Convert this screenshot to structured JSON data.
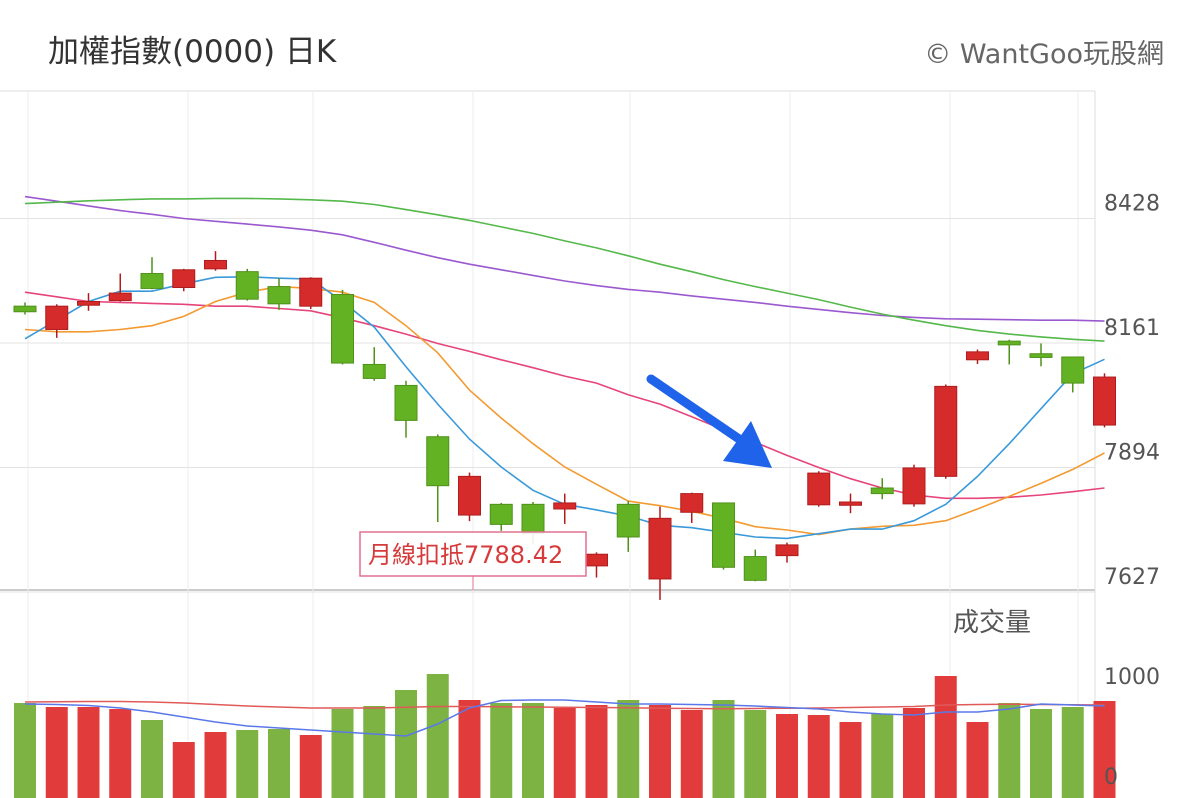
{
  "header": {
    "title": "加權指數(0000) 日K",
    "copyright": "© WantGoo玩股網"
  },
  "volume_panel": {
    "title": "成交量"
  },
  "colors": {
    "up": "#d62b2b",
    "down": "#63b224",
    "ma5": "#3a9ad9",
    "ma10": "#f39a32",
    "ma20": "#e6457a",
    "ma60": "#55b84b",
    "ma120": "#9b59d0",
    "vol_ma5": "#5b78e8",
    "vol_ma20": "#e05a5a",
    "arrow": "#1e63e9"
  },
  "chart_data": [
    {
      "type": "candlestick",
      "title": "加權指數(0000) 日K",
      "y_ticks": [
        8428,
        8161,
        7894,
        7627
      ],
      "ylim": [
        7590,
        8660
      ],
      "grid": true,
      "candles": [
        {
          "o": 8240,
          "c": 8228,
          "h": 8248,
          "l": 8222
        },
        {
          "o": 8190,
          "c": 8240,
          "h": 8244,
          "l": 8172
        },
        {
          "o": 8242,
          "c": 8250,
          "h": 8268,
          "l": 8230
        },
        {
          "o": 8252,
          "c": 8268,
          "h": 8310,
          "l": 8250
        },
        {
          "o": 8310,
          "c": 8278,
          "h": 8345,
          "l": 8276
        },
        {
          "o": 8280,
          "c": 8318,
          "h": 8320,
          "l": 8272
        },
        {
          "o": 8320,
          "c": 8338,
          "h": 8358,
          "l": 8316
        },
        {
          "o": 8314,
          "c": 8255,
          "h": 8320,
          "l": 8252
        },
        {
          "o": 8282,
          "c": 8245,
          "h": 8300,
          "l": 8232
        },
        {
          "o": 8240,
          "c": 8300,
          "h": 8302,
          "l": 8234
        },
        {
          "o": 8265,
          "c": 8118,
          "h": 8275,
          "l": 8115
        },
        {
          "o": 8115,
          "c": 8085,
          "h": 8152,
          "l": 8080
        },
        {
          "o": 8070,
          "c": 7995,
          "h": 8080,
          "l": 7958
        },
        {
          "o": 7960,
          "c": 7855,
          "h": 7965,
          "l": 7777
        },
        {
          "o": 7792,
          "c": 7875,
          "h": 7883,
          "l": 7779
        },
        {
          "o": 7815,
          "c": 7772,
          "h": 7818,
          "l": 7758
        },
        {
          "o": 7815,
          "c": 7752,
          "h": 7820,
          "l": 7730
        },
        {
          "o": 7805,
          "c": 7818,
          "h": 7838,
          "l": 7773
        },
        {
          "o": 7683,
          "c": 7708,
          "h": 7712,
          "l": 7658
        },
        {
          "o": 7815,
          "c": 7745,
          "h": 7822,
          "l": 7713
        },
        {
          "o": 7655,
          "c": 7785,
          "h": 7810,
          "l": 7610
        },
        {
          "o": 7798,
          "c": 7838,
          "h": 7840,
          "l": 7775
        },
        {
          "o": 7818,
          "c": 7680,
          "h": 7818,
          "l": 7675
        },
        {
          "o": 7703,
          "c": 7652,
          "h": 7718,
          "l": 7650
        },
        {
          "o": 7705,
          "c": 7728,
          "h": 7733,
          "l": 7690
        },
        {
          "o": 7814,
          "c": 7882,
          "h": 7886,
          "l": 7810
        },
        {
          "o": 7813,
          "c": 7820,
          "h": 7838,
          "l": 7796
        },
        {
          "o": 7850,
          "c": 7838,
          "h": 7871,
          "l": 7826
        },
        {
          "o": 7816,
          "c": 7893,
          "h": 7900,
          "l": 7810
        },
        {
          "o": 7875,
          "c": 8068,
          "h": 8072,
          "l": 7870
        },
        {
          "o": 8125,
          "c": 8142,
          "h": 8147,
          "l": 8116
        },
        {
          "o": 8165,
          "c": 8157,
          "h": 8168,
          "l": 8115
        },
        {
          "o": 8138,
          "c": 8130,
          "h": 8160,
          "l": 8111
        },
        {
          "o": 8131,
          "c": 8075,
          "h": 8132,
          "l": 8055
        },
        {
          "o": 7985,
          "c": 8088,
          "h": 8096,
          "l": 7980
        }
      ],
      "moving_averages": {
        "ma5": [
          8170,
          8210,
          8250,
          8272,
          8272,
          8288,
          8302,
          8303,
          8300,
          8298,
          8250,
          8195,
          8110,
          8030,
          7955,
          7895,
          7845,
          7815,
          7803,
          7790,
          7770,
          7765,
          7755,
          7745,
          7742,
          7752,
          7762,
          7762,
          7780,
          7815,
          7875,
          7945,
          8020,
          8095,
          8126
        ],
        "ma10": [
          8190,
          8185,
          8185,
          8190,
          8198,
          8218,
          8250,
          8270,
          8282,
          8278,
          8270,
          8248,
          8198,
          8140,
          8060,
          8000,
          7945,
          7895,
          7858,
          7822,
          7812,
          7800,
          7785,
          7767,
          7760,
          7750,
          7762,
          7768,
          7770,
          7780,
          7805,
          7832,
          7860,
          7890,
          7925
        ],
        "ma20": [
          8270,
          8260,
          8250,
          8248,
          8246,
          8244,
          8240,
          8240,
          8235,
          8230,
          8215,
          8198,
          8180,
          8160,
          8143,
          8125,
          8108,
          8090,
          8075,
          8050,
          8030,
          8003,
          7975,
          7948,
          7920,
          7894,
          7870,
          7850,
          7835,
          7828,
          7828,
          7830,
          7835,
          7842,
          7850
        ],
        "ma60": [
          8460,
          8463,
          8466,
          8468,
          8470,
          8470,
          8471,
          8471,
          8470,
          8468,
          8465,
          8458,
          8447,
          8436,
          8424,
          8410,
          8396,
          8380,
          8365,
          8348,
          8330,
          8314,
          8297,
          8282,
          8268,
          8254,
          8238,
          8223,
          8210,
          8198,
          8188,
          8180,
          8174,
          8169,
          8165
        ],
        "ma120": [
          8475,
          8465,
          8455,
          8445,
          8437,
          8428,
          8422,
          8416,
          8410,
          8403,
          8393,
          8377,
          8360,
          8344,
          8330,
          8318,
          8306,
          8294,
          8284,
          8276,
          8270,
          8262,
          8255,
          8248,
          8240,
          8233,
          8226,
          8220,
          8216,
          8213,
          8212,
          8211,
          8210,
          8210,
          8208
        ]
      },
      "annotation": {
        "label": "月線扣抵7788.42"
      }
    },
    {
      "type": "bar",
      "title": "成交量",
      "y_ticks": [
        1000,
        0
      ],
      "ylim": [
        0,
        1000
      ],
      "values": [
        730,
        690,
        690,
        670,
        560,
        340,
        440,
        460,
        470,
        410,
        670,
        700,
        860,
        1020,
        760,
        730,
        730,
        680,
        710,
        760,
        710,
        660,
        760,
        660,
        620,
        610,
        540,
        620,
        680,
        1000,
        540,
        730,
        670,
        690,
        750
      ],
      "ma5": [
        720,
        715,
        705,
        680,
        640,
        590,
        540,
        500,
        480,
        460,
        440,
        420,
        400,
        520,
        680,
        755,
        760,
        760,
        740,
        720,
        720,
        715,
        710,
        700,
        685,
        670,
        640,
        620,
        610,
        640,
        640,
        670,
        720,
        710,
        700
      ],
      "ma20": [
        740,
        742,
        745,
        745,
        740,
        730,
        715,
        700,
        690,
        680,
        680,
        680,
        688,
        695,
        695,
        692,
        690,
        688,
        685,
        682,
        678,
        675,
        672,
        675,
        678,
        680,
        685,
        690,
        695,
        710,
        715,
        718,
        715,
        712,
        710
      ]
    }
  ]
}
